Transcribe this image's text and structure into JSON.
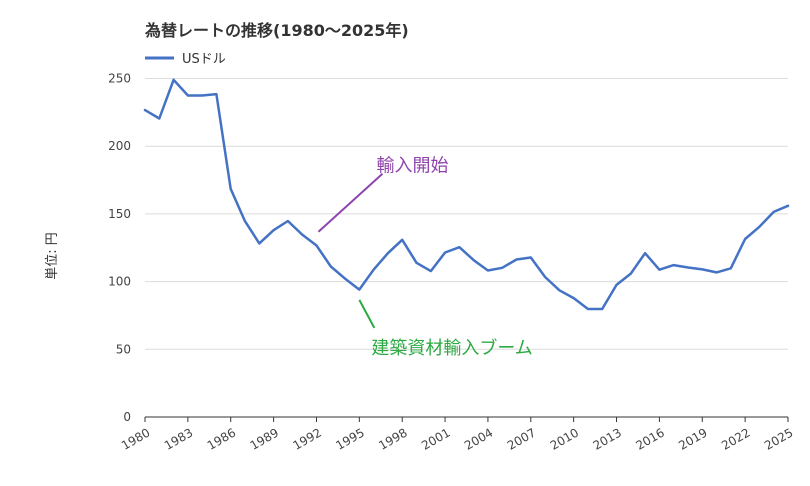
{
  "chart_data": {
    "type": "line",
    "title": "為替レートの推移(1980～2025年)",
    "ylabel": "単位: 円",
    "xlabel": "",
    "ylim": [
      0,
      260
    ],
    "yticks": [
      0,
      50,
      100,
      150,
      200,
      250
    ],
    "xtick_labels": [
      "1980",
      "1983",
      "1986",
      "1989",
      "1992",
      "1995",
      "1998",
      "2001",
      "2004",
      "2007",
      "2010",
      "2013",
      "2016",
      "2019",
      "2022",
      "2025"
    ],
    "grid": "horizontal",
    "legend_position": "top-left",
    "x": [
      1980,
      1981,
      1982,
      1983,
      1984,
      1985,
      1986,
      1987,
      1988,
      1989,
      1990,
      1991,
      1992,
      1993,
      1994,
      1995,
      1996,
      1997,
      1998,
      1999,
      2000,
      2001,
      2002,
      2003,
      2004,
      2005,
      2006,
      2007,
      2008,
      2009,
      2010,
      2011,
      2012,
      2013,
      2014,
      2015,
      2016,
      2017,
      2018,
      2019,
      2020,
      2021,
      2022,
      2023,
      2024,
      2025
    ],
    "series": [
      {
        "name": "USドル",
        "color": "#4472c4",
        "values": [
          226.7,
          220.5,
          249.1,
          237.5,
          237.5,
          238.5,
          168.5,
          144.6,
          128.2,
          138.0,
          144.8,
          134.7,
          126.7,
          111.2,
          102.2,
          94.1,
          108.8,
          121.0,
          130.9,
          113.9,
          107.8,
          121.5,
          125.4,
          115.9,
          108.2,
          110.2,
          116.3,
          117.8,
          103.4,
          93.6,
          87.8,
          79.8,
          79.8,
          97.6,
          105.9,
          121.0,
          108.8,
          112.2,
          110.4,
          109.0,
          106.8,
          109.8,
          131.5,
          140.5,
          151.5,
          156.0
        ]
      }
    ],
    "annotations": [
      {
        "text": "輸入開始",
        "color": "#8e44ad",
        "x": 1992,
        "y": 128
      },
      {
        "text": "建築資材輸入ブーム",
        "color": "#2eaa44",
        "x": 1995,
        "y": 88
      }
    ]
  }
}
